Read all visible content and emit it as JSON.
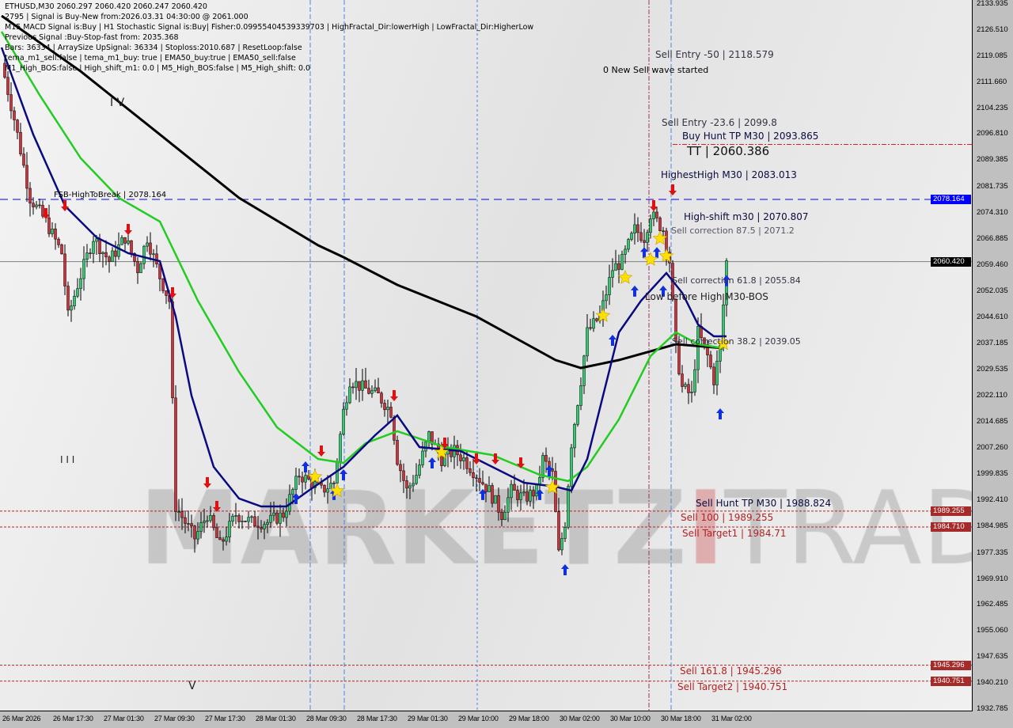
{
  "header": {
    "line1": "ETHUSD,M30  2060.297 2060.420 2060.247 2060.420",
    "line2": "2795 | Signal is Buy-New from:2026.03.31 04:30:00 @ 2061.000",
    "line3": "M15 MACD Signal is:Buy | H1 Stochastic Signal is:Buy| Fisher:0.09955404539339703 | HighFractal_Dir:lowerHigh | LowFractal_Dir:HigherLow",
    "line4": "Previous Signal :Buy-Stop-fast from: 2035.368",
    "line5": "Bars: 36334 | ArraySize UpSignal: 36334 | Stoploss:2010.687 | ResetLoop:false",
    "line6": "tema_m1_sell:false | tema_m1_buy: true | EMA50_buy:true | EMA50_sell:false",
    "line7": "M1_High_BOS:false | High_shift_m1: 0.0 | M5_High_BOS:false | M5_High_shift: 0.0"
  },
  "annotations": {
    "new_sell_wave": "0 New Sell wave started",
    "sell_entry_50": "Sell Entry -50 | 2118.579",
    "sell_entry_236": "Sell Entry -23.6 | 2099.8",
    "buy_hunt_tp": "Buy Hunt TP M30 | 2093.865",
    "tt": "TT | 2060.386",
    "highest_high": "HighestHigh   M30 | 2083.013",
    "fsb": "FSB-HighToBreak | 2078.164",
    "high_shift": "High-shift m30 | 2070.807",
    "sell_corr_875": "Sell correction 87.5 | 2071.2",
    "sell_corr_618": "Sell correction 61.8 | 2055.84",
    "low_before_high": "Low before High   M30-BOS",
    "sell_corr_382": "Sell correction 38.2 | 2039.05",
    "sell_hunt_tp": "Sell Hunt TP M30 | 1988.824",
    "sell_100": "Sell 100 | 1989.255",
    "sell_target1": "Sell Target1 | 1984.71",
    "sell_1618": "Sell 161.8 | 1945.296",
    "sell_target2": "Sell Target2 | 1940.751",
    "wave_iv": "I V",
    "wave_iii": "I I I",
    "wave_v": "V"
  },
  "watermark": "MARKETZITRADE",
  "colors": {
    "bull": "#2ecc71",
    "bear": "#d0303a",
    "fast_ma": "#0a0a80",
    "mid_ma": "#22cc22",
    "slow_ma": "#000000",
    "level_blue": "#0000ff",
    "level_red": "#b22222",
    "envelope": "#ff4500",
    "fractal": "#4a86e8"
  },
  "chart_data": {
    "type": "candlestick",
    "symbol": "ETHUSD",
    "timeframe": "M30",
    "ylim": [
      1932.785,
      2133.935
    ],
    "y_ticks": [
      "2133.935",
      "2126.510",
      "2119.085",
      "2111.660",
      "2104.235",
      "2096.810",
      "2089.385",
      "2081.735",
      "2074.310",
      "2066.885",
      "2059.460",
      "2052.035",
      "2044.610",
      "2037.185",
      "2029.535",
      "2022.110",
      "2014.685",
      "2007.260",
      "1999.835",
      "1992.410",
      "1984.985",
      "1977.335",
      "1969.910",
      "1962.485",
      "1955.060",
      "1947.635",
      "1940.210",
      "1932.785"
    ],
    "x_ticks": [
      "26 Mar 2026",
      "26 Mar 17:30",
      "27 Mar 01:30",
      "27 Mar 09:30",
      "27 Mar 17:30",
      "28 Mar 01:30",
      "28 Mar 09:30",
      "28 Mar 17:30",
      "29 Mar 01:30",
      "29 Mar 10:00",
      "29 Mar 18:00",
      "30 Mar 02:00",
      "30 Mar 10:00",
      "30 Mar 18:00",
      "31 Mar 02:00"
    ],
    "bars_total": 307,
    "price_path": [
      [
        1,
        2117.0
      ],
      [
        5,
        2101.2
      ],
      [
        10,
        2078.62
      ],
      [
        15,
        2071.85
      ],
      [
        20,
        2062.82
      ],
      [
        22,
        2044.76
      ],
      [
        25,
        2053.79
      ],
      [
        30,
        2067.33
      ],
      [
        35,
        2060.56
      ],
      [
        40,
        2067.33
      ],
      [
        44,
        2058.3
      ],
      [
        47,
        2067.33
      ],
      [
        51,
        2056.04
      ],
      [
        54,
        2049.27
      ],
      [
        56,
        1990.57
      ],
      [
        59,
        1986.06
      ],
      [
        62,
        1981.54
      ],
      [
        66,
        1988.32
      ],
      [
        70,
        1979.28
      ],
      [
        75,
        1988.32
      ],
      [
        80,
        1986.06
      ],
      [
        85,
        1986.06
      ],
      [
        90,
        1988.32
      ],
      [
        95,
        1999.61
      ],
      [
        99,
        1997.35
      ],
      [
        102,
        1995.09
      ],
      [
        106,
        1997.35
      ],
      [
        109,
        2017.67
      ],
      [
        111,
        2026.67
      ],
      [
        115,
        2024.47
      ],
      [
        120,
        2022.19
      ],
      [
        124,
        2017.67
      ],
      [
        126,
        2004.12
      ],
      [
        129,
        1995.09
      ],
      [
        132,
        1999.61
      ],
      [
        136,
        2010.9
      ],
      [
        140,
        2004.12
      ],
      [
        144,
        2006.38
      ],
      [
        147,
        2004.12
      ],
      [
        151,
        1999.61
      ],
      [
        155,
        1995.09
      ],
      [
        159,
        1988.32
      ],
      [
        162,
        1995.09
      ],
      [
        166,
        1992.84
      ],
      [
        170,
        1995.09
      ],
      [
        172,
        2004.12
      ],
      [
        175,
        1999.61
      ],
      [
        177,
        1977.03
      ],
      [
        179,
        1986.06
      ],
      [
        181,
        2008.63
      ],
      [
        184,
        2026.67
      ],
      [
        186,
        2040.25
      ],
      [
        190,
        2044.76
      ],
      [
        194,
        2058.3
      ],
      [
        197,
        2060.56
      ],
      [
        201,
        2069.58
      ],
      [
        204,
        2067.33
      ],
      [
        206,
        2074.1
      ],
      [
        210,
        2069.58
      ],
      [
        212,
        2060.56
      ],
      [
        214,
        2035.73
      ],
      [
        216,
        2024.47
      ],
      [
        219,
        2022.19
      ],
      [
        221,
        2040.25
      ],
      [
        224,
        2033.47
      ],
      [
        226,
        2026.67
      ],
      [
        228,
        2035.73
      ],
      [
        230,
        2060.42
      ]
    ],
    "series": [
      {
        "role": "slow_ma",
        "points": [
          [
            0,
            2130.55
          ],
          [
            25,
            2114.71
          ],
          [
            50,
            2096.69
          ],
          [
            75,
            2078.62
          ],
          [
            100,
            2065.08
          ],
          [
            108,
            2061.69
          ],
          [
            125,
            2053.79
          ],
          [
            150,
            2044.76
          ],
          [
            175,
            2032.34
          ],
          [
            183,
            2030.08
          ],
          [
            195,
            2032.34
          ],
          [
            213,
            2036.86
          ],
          [
            228,
            2035.73
          ]
        ]
      },
      {
        "role": "mid_ma",
        "points": [
          [
            0,
            2126.03
          ],
          [
            12,
            2107.97
          ],
          [
            25,
            2089.91
          ],
          [
            37,
            2078.62
          ],
          [
            50,
            2071.85
          ],
          [
            62,
            2049.27
          ],
          [
            75,
            2028.96
          ],
          [
            87,
            2013.16
          ],
          [
            100,
            2004.12
          ],
          [
            108,
            2002.99
          ],
          [
            115,
            2008.63
          ],
          [
            125,
            2012.03
          ],
          [
            140,
            2007.51
          ],
          [
            155,
            2005.25
          ],
          [
            170,
            1999.61
          ],
          [
            179,
            1997.8
          ],
          [
            185,
            2001.87
          ],
          [
            195,
            2015.41
          ],
          [
            205,
            2033.47
          ],
          [
            213,
            2040.25
          ],
          [
            220,
            2036.86
          ],
          [
            228,
            2035.73
          ]
        ]
      },
      {
        "role": "fast_ma",
        "points": [
          [
            0,
            2121.52
          ],
          [
            10,
            2096.69
          ],
          [
            20,
            2076.37
          ],
          [
            30,
            2067.33
          ],
          [
            40,
            2062.82
          ],
          [
            50,
            2060.56
          ],
          [
            55,
            2044.76
          ],
          [
            60,
            2022.19
          ],
          [
            67,
            2001.87
          ],
          [
            75,
            1992.84
          ],
          [
            82,
            1990.57
          ],
          [
            90,
            1990.57
          ],
          [
            97,
            1995.09
          ],
          [
            108,
            2001.87
          ],
          [
            118,
            2010.9
          ],
          [
            125,
            2016.54
          ],
          [
            132,
            2007.51
          ],
          [
            145,
            2006.38
          ],
          [
            155,
            2001.87
          ],
          [
            165,
            1997.35
          ],
          [
            175,
            1996.22
          ],
          [
            180,
            1995.09
          ],
          [
            185,
            2004.12
          ],
          [
            190,
            2022.19
          ],
          [
            195,
            2040.25
          ],
          [
            202,
            2049.27
          ],
          [
            210,
            2057.17
          ],
          [
            215,
            2051.53
          ],
          [
            220,
            2042.5
          ],
          [
            225,
            2039.12
          ],
          [
            229,
            2039.12
          ]
        ]
      }
    ],
    "levels": [
      {
        "price": 2078.164,
        "style": "dashed",
        "color": "#0000ff",
        "tag": "2078.164"
      },
      {
        "price": 2060.42,
        "style": "solid",
        "color": "#808080",
        "tag": "2060.420"
      },
      {
        "price": 1989.255,
        "style": "dotted",
        "color": "#b22222",
        "tag": "1989.255"
      },
      {
        "price": 1984.71,
        "style": "dotted",
        "color": "#b22222",
        "tag": "1984.710"
      },
      {
        "price": 1945.296,
        "style": "dotted",
        "color": "#b22222",
        "tag": "1945.296"
      },
      {
        "price": 1940.751,
        "style": "dotted",
        "color": "#b22222",
        "tag": "1940.751"
      }
    ],
    "signals": [
      [
        14,
        2074.1,
        "sell"
      ],
      [
        20,
        2076.37,
        "sell"
      ],
      [
        40,
        2069.58,
        "sell"
      ],
      [
        54,
        2051.53,
        "sell"
      ],
      [
        65,
        1997.35,
        "sell"
      ],
      [
        68,
        1990.57,
        "sell"
      ],
      [
        101,
        2006.38,
        "sell"
      ],
      [
        124,
        2022.19,
        "sell"
      ],
      [
        140,
        2008.63,
        "sell"
      ],
      [
        150,
        2004.12,
        "sell"
      ],
      [
        156,
        2004.12,
        "sell"
      ],
      [
        164,
        2003.0,
        "sell"
      ],
      [
        206,
        2076.37,
        "sell"
      ],
      [
        212,
        2080.88,
        "sell"
      ],
      [
        93,
        1992.84,
        "buy"
      ],
      [
        96,
        2001.87,
        "buy"
      ],
      [
        105,
        1994.0,
        "buy"
      ],
      [
        108,
        1999.61,
        "buy"
      ],
      [
        136,
        2003.0,
        "buy"
      ],
      [
        152,
        1994.0,
        "buy"
      ],
      [
        170,
        1994.0,
        "buy"
      ],
      [
        173,
        2000.74,
        "buy"
      ],
      [
        178,
        1972.51,
        "buy"
      ],
      [
        193,
        2038.0,
        "buy"
      ],
      [
        200,
        2052.0,
        "buy"
      ],
      [
        203,
        2063.0,
        "buy"
      ],
      [
        207,
        2063.0,
        "buy"
      ],
      [
        209,
        2052.0,
        "buy"
      ],
      [
        227,
        2017.0,
        "buy"
      ],
      [
        229,
        2055.0,
        "buy"
      ],
      [
        190,
        2045.0,
        "star"
      ],
      [
        197,
        2055.84,
        "star"
      ],
      [
        205,
        2061.0,
        "star"
      ],
      [
        208,
        2067.0,
        "star"
      ],
      [
        210,
        2062.0,
        "star"
      ],
      [
        174,
        1996.0,
        "star"
      ],
      [
        139,
        2006.0,
        "star"
      ],
      [
        99,
        1999.0,
        "star"
      ],
      [
        106,
        1995.0,
        "star"
      ],
      [
        228,
        2037.0,
        "star"
      ]
    ]
  }
}
